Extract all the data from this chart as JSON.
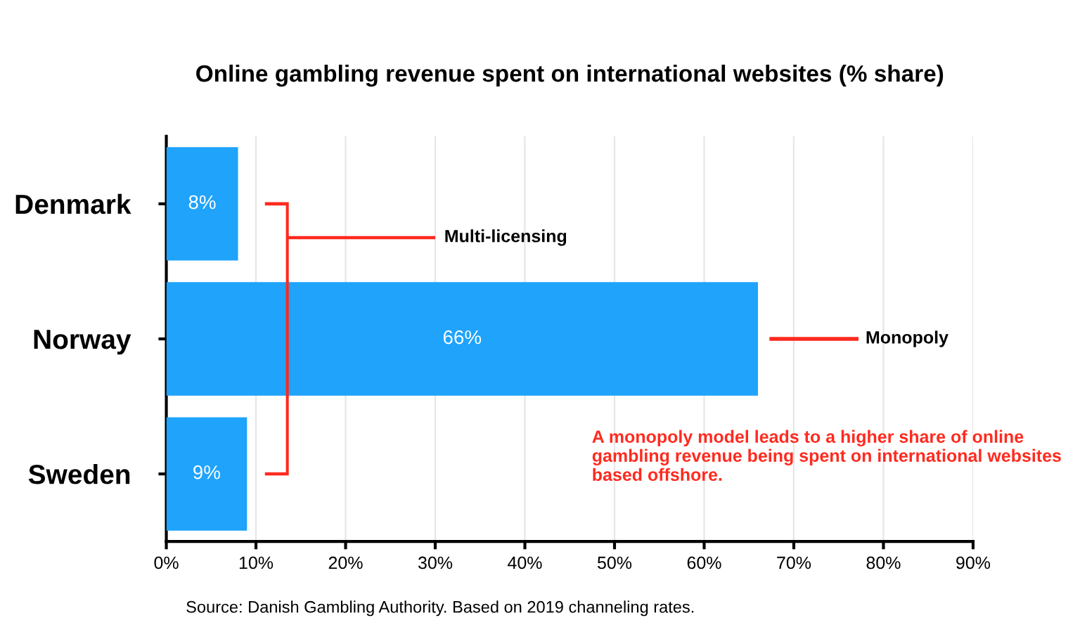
{
  "chart_data": {
    "type": "bar",
    "orientation": "horizontal",
    "title": "Online gambling revenue spent on international websites (% share)",
    "categories": [
      "Denmark",
      "Norway",
      "Sweden"
    ],
    "values": [
      8,
      66,
      9
    ],
    "color": "#1fa3fb",
    "value_labels": [
      "8%",
      "66%",
      "9%"
    ],
    "xlim": [
      0,
      90
    ],
    "xticks": [
      {
        "value": 0,
        "label": "0%"
      },
      {
        "value": 10,
        "label": "10%"
      },
      {
        "value": 20,
        "label": "20%"
      },
      {
        "value": 30,
        "label": "30%"
      },
      {
        "value": 40,
        "label": "40%"
      },
      {
        "value": 50,
        "label": "50%"
      },
      {
        "value": 60,
        "label": "60%"
      },
      {
        "value": 70,
        "label": "70%"
      },
      {
        "value": 80,
        "label": "80%"
      },
      {
        "value": 90,
        "label": "90%"
      }
    ],
    "grid": "x",
    "annotations": [
      "Multi-licensing",
      "Monopoly",
      "A monopoly model leads to a higher share of online gambling revenue being spent on international websites based offshore.",
      "Source: Danish Gambling Authority. Based on 2019 channeling rates."
    ]
  }
}
